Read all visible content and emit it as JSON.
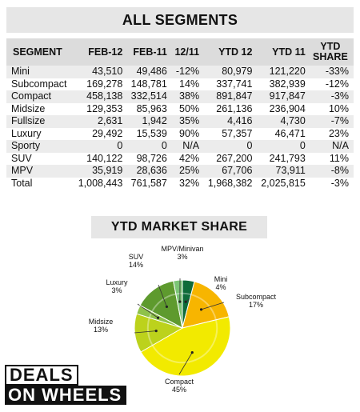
{
  "segments_title": "ALL SEGMENTS",
  "table": {
    "headers": [
      "SEGMENT",
      "FEB-12",
      "FEB-11",
      "12/11",
      "YTD 12",
      "YTD 11",
      "YTD\nSHARE"
    ],
    "rows": [
      [
        "Mini",
        "43,510",
        "49,486",
        "-12%",
        "80,979",
        "121,220",
        "-33%"
      ],
      [
        "Subcompact",
        "169,278",
        "148,781",
        "14%",
        "337,741",
        "382,939",
        "-12%"
      ],
      [
        "Compact",
        "458,138",
        "332,514",
        "38%",
        "891,847",
        "917,847",
        "-3%"
      ],
      [
        "Midsize",
        "129,353",
        "85,963",
        "50%",
        "261,136",
        "236,904",
        "10%"
      ],
      [
        "Fullsize",
        "2,631",
        "1,942",
        "35%",
        "4,416",
        "4,730",
        "-7%"
      ],
      [
        "Luxury",
        "29,492",
        "15,539",
        "90%",
        "57,357",
        "46,471",
        "23%"
      ],
      [
        "Sporty",
        "0",
        "0",
        "N/A",
        "0",
        "0",
        "N/A"
      ],
      [
        "SUV",
        "140,122",
        "98,726",
        "42%",
        "267,200",
        "241,793",
        "11%"
      ],
      [
        "MPV",
        "35,919",
        "28,636",
        "25%",
        "67,706",
        "73,911",
        "-8%"
      ],
      [
        "Total",
        "1,008,443",
        "761,587",
        "32%",
        "1,968,382",
        "2,025,815",
        "-3%"
      ]
    ]
  },
  "chart_data": {
    "type": "pie",
    "title": "YTD MARKET SHARE",
    "slices": [
      {
        "label": "Mini",
        "value": 4,
        "display": "4%",
        "color": "#0f6b3a"
      },
      {
        "label": "Subcompact",
        "value": 17,
        "display": "17%",
        "color": "#f7b500"
      },
      {
        "label": "Compact",
        "value": 45,
        "display": "45%",
        "color": "#f2ea00"
      },
      {
        "label": "Midsize",
        "value": 13,
        "display": "13%",
        "color": "#bcd21c"
      },
      {
        "label": "Luxury",
        "value": 3,
        "display": "3%",
        "color": "#8fc24a"
      },
      {
        "label": "SUV",
        "value": 14,
        "display": "14%",
        "color": "#5e9a2e"
      },
      {
        "label": "MPV/Minivan",
        "value": 3,
        "display": "3%",
        "color": "#7cc576"
      }
    ]
  },
  "logo": {
    "line1": "DEALS",
    "line2": "ON WHEELS"
  }
}
